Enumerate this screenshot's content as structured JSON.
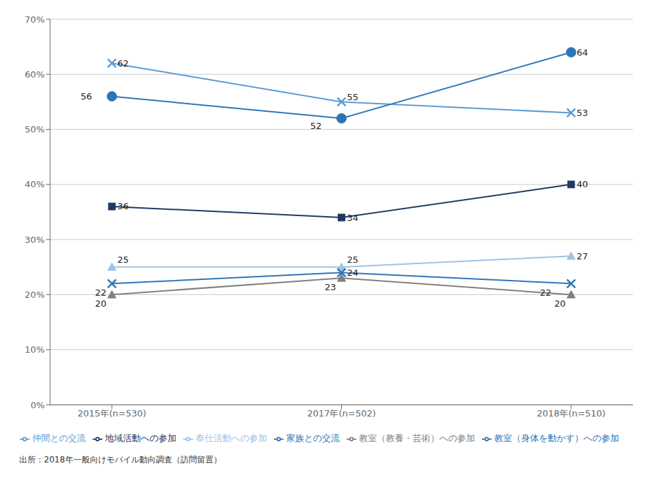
{
  "chart_data": {
    "type": "line",
    "categories": [
      "2015年(n=530)",
      "2017年(n=502)",
      "2018年(n=510)"
    ],
    "series": [
      {
        "name": "地域活動への参加",
        "color": "#1F3864",
        "marker": "square",
        "values": [
          36,
          34,
          40
        ]
      },
      {
        "name": "奉仕活動への参加",
        "color": "#9DC3E6",
        "marker": "triangle",
        "values": [
          25,
          25,
          27
        ]
      },
      {
        "name": "教室（教養・芸術）への参加",
        "color": "#808080",
        "marker": "triangle",
        "values": [
          20,
          23,
          20
        ]
      },
      {
        "name": "教室（身体を動かす）への参加",
        "color": "#2E75B6",
        "marker": "x",
        "values": [
          22,
          24,
          22
        ]
      },
      {
        "name": "仲間との交流",
        "color": "#5B9BD5",
        "marker": "x",
        "values": [
          62,
          55,
          53
        ]
      },
      {
        "name": "家族との交流",
        "color": "#2E75B6",
        "marker": "circle",
        "values": [
          56,
          52,
          64
        ]
      }
    ],
    "ylim": [
      0,
      70
    ],
    "yticks": [
      {
        "value": 0,
        "label": "0%"
      },
      {
        "value": 10,
        "label": "10%"
      },
      {
        "value": 20,
        "label": "20%"
      },
      {
        "value": 30,
        "label": "30%"
      },
      {
        "value": 40,
        "label": "40%"
      },
      {
        "value": 50,
        "label": "50%"
      },
      {
        "value": 60,
        "label": "60%"
      },
      {
        "value": 70,
        "label": "70%"
      }
    ],
    "grid": "y",
    "legend": "bottom",
    "data_labels": true,
    "annotations": [
      "出所：2018年一般向けモバイル動向調査（訪問留置）"
    ]
  }
}
